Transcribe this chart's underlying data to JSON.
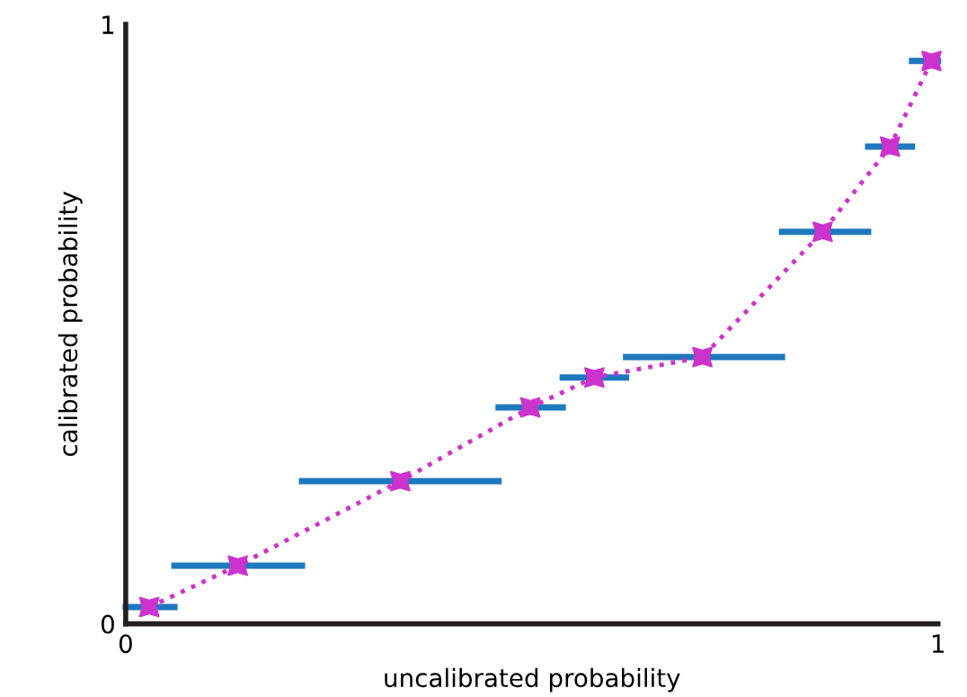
{
  "chart_data": {
    "type": "line",
    "xlabel": "uncalibrated probability",
    "ylabel": "calibrated probability",
    "xlim": [
      0,
      1
    ],
    "ylim": [
      0,
      1
    ],
    "xticks": [
      0,
      1
    ],
    "yticks": [
      0,
      1
    ],
    "grid": false,
    "legend": false,
    "series": [
      {
        "color": "#1f77bd",
        "marker": "none",
        "line_style": "solid",
        "x": [
          0,
          0.06
        ],
        "values": [
          0.028,
          0.028
        ]
      },
      {
        "color": "#1f77bd",
        "marker": "none",
        "line_style": "solid",
        "x": [
          0.06,
          0.217
        ],
        "values": [
          0.097,
          0.097
        ]
      },
      {
        "color": "#1f77bd",
        "marker": "none",
        "line_style": "solid",
        "x": [
          0.217,
          0.459
        ],
        "values": [
          0.238,
          0.238
        ]
      },
      {
        "color": "#1f77bd",
        "marker": "none",
        "line_style": "solid",
        "x": [
          0.459,
          0.538
        ],
        "values": [
          0.361,
          0.361
        ]
      },
      {
        "color": "#1f77bd",
        "marker": "none",
        "line_style": "solid",
        "x": [
          0.538,
          0.616
        ],
        "values": [
          0.411,
          0.411
        ]
      },
      {
        "color": "#1f77bd",
        "marker": "none",
        "line_style": "solid",
        "x": [
          0.616,
          0.808
        ],
        "values": [
          0.445,
          0.445
        ]
      },
      {
        "color": "#1f77bd",
        "marker": "none",
        "line_style": "solid",
        "x": [
          0.808,
          0.914
        ],
        "values": [
          0.654,
          0.654
        ]
      },
      {
        "color": "#1f77bd",
        "marker": "none",
        "line_style": "solid",
        "x": [
          0.914,
          0.968
        ],
        "values": [
          0.796,
          0.796
        ]
      },
      {
        "color": "#1f77bd",
        "marker": "none",
        "line_style": "solid",
        "x": [
          0.968,
          1.0
        ],
        "values": [
          0.939,
          0.939
        ]
      },
      {
        "color": "#cc33cc",
        "marker": "star",
        "line_style": "dotted",
        "x": [
          0.029,
          0.138,
          0.338,
          0.498,
          0.577,
          0.71,
          0.858,
          0.941,
          0.992
        ],
        "values": [
          0.028,
          0.097,
          0.238,
          0.361,
          0.411,
          0.445,
          0.654,
          0.796,
          0.939
        ]
      }
    ]
  }
}
